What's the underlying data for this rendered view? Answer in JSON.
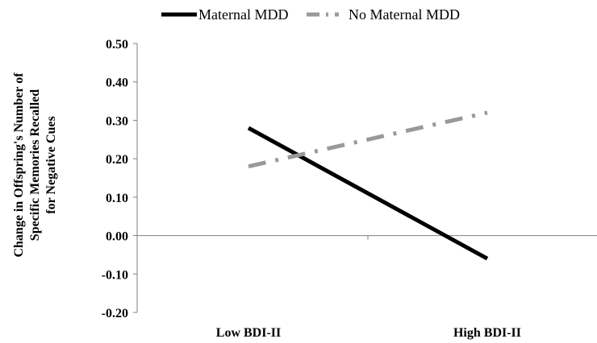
{
  "chart_data": {
    "type": "line",
    "categories": [
      "Low BDI-II",
      "High BDI-II"
    ],
    "series": [
      {
        "name": "Maternal MDD",
        "values": [
          0.28,
          -0.06
        ],
        "color": "#000000",
        "dash": "solid"
      },
      {
        "name": "No Maternal MDD",
        "values": [
          0.18,
          0.32
        ],
        "color": "#999999",
        "dash": "dash-dot"
      }
    ],
    "ylabel_lines": [
      "Change in Offspring's Number of",
      "Specific Memories Recalled",
      "for Negative Cues"
    ],
    "ylim": [
      -0.2,
      0.5
    ],
    "yticks": [
      0.5,
      0.4,
      0.3,
      0.2,
      0.1,
      0.0,
      -0.1,
      -0.2
    ],
    "ytick_labels": [
      "0.50",
      "0.40",
      "0.30",
      "0.20",
      "0.10",
      "0.00",
      "-0.10",
      "-0.20"
    ],
    "legend_position": "top",
    "grid": false
  }
}
